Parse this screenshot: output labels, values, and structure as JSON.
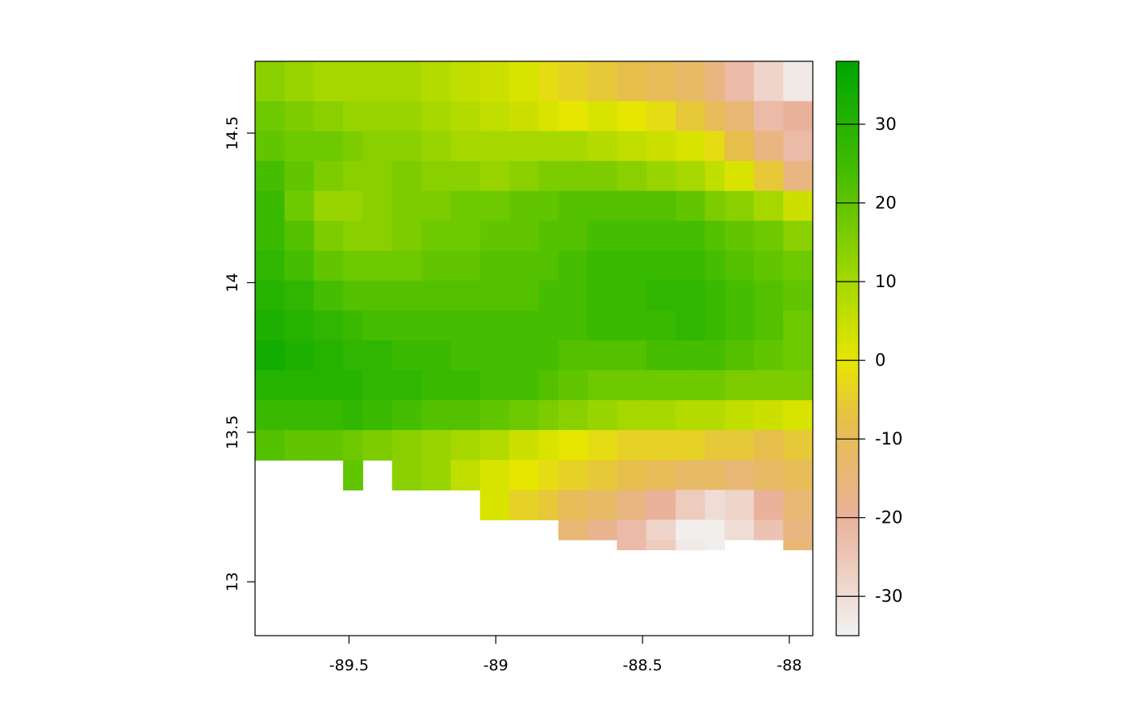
{
  "chart_data": {
    "type": "heatmap",
    "title": "",
    "xlabel": "",
    "ylabel": "",
    "xlim": [
      -89.82,
      -87.92
    ],
    "ylim": [
      12.82,
      14.74
    ],
    "x_ticks": [
      {
        "value": -89.5,
        "label": "-89.5"
      },
      {
        "value": -89.0,
        "label": "-89"
      },
      {
        "value": -88.5,
        "label": "-88.5"
      },
      {
        "value": -88.0,
        "label": "-88"
      }
    ],
    "y_ticks": [
      {
        "value": 13.0,
        "label": "13"
      },
      {
        "value": 13.5,
        "label": "13.5"
      },
      {
        "value": 14.0,
        "label": "14"
      },
      {
        "value": 14.5,
        "label": "14.5"
      }
    ],
    "grid": false,
    "value_range": [
      -35,
      38
    ],
    "colorbar": {
      "placement": "right",
      "ticks": [
        {
          "value": 30,
          "label": "30"
        },
        {
          "value": 20,
          "label": "20"
        },
        {
          "value": 10,
          "label": "10"
        },
        {
          "value": 0,
          "label": "0"
        },
        {
          "value": -10,
          "label": "-10"
        },
        {
          "value": -20,
          "label": "-20"
        },
        {
          "value": -30,
          "label": "-30"
        }
      ],
      "colors": [
        "#f2f2f2",
        "#eab29b",
        "#e6be4c",
        "#e6e600",
        "#a6d800",
        "#3ebb00",
        "#00a600"
      ],
      "color_stops": [
        -35,
        -20,
        -8,
        0,
        10,
        25,
        38
      ]
    },
    "cell_size_deg": 0.0833,
    "data_extent_note": "",
    "cells": [
      {
        "row_lat": 14.7,
        "values_by_lon": [
          14,
          12,
          10,
          10,
          10,
          10,
          8,
          6,
          4,
          2,
          -2,
          -4,
          -6,
          -8,
          -10,
          -12,
          -16,
          -22,
          -28,
          -33
        ]
      },
      {
        "row_lat": 14.6,
        "values_by_lon": [
          18,
          16,
          14,
          12,
          12,
          12,
          10,
          8,
          6,
          4,
          2,
          0,
          2,
          0,
          -2,
          -6,
          -10,
          -14,
          -22,
          -20
        ]
      },
      {
        "row_lat": 14.5,
        "values_by_lon": [
          20,
          18,
          18,
          16,
          14,
          14,
          12,
          10,
          10,
          10,
          10,
          10,
          8,
          6,
          4,
          2,
          -2,
          -8,
          -16,
          -22
        ]
      },
      {
        "row_lat": 14.4,
        "values_by_lon": [
          24,
          20,
          16,
          14,
          14,
          16,
          14,
          14,
          12,
          14,
          16,
          16,
          16,
          14,
          12,
          10,
          6,
          2,
          -6,
          -16
        ]
      },
      {
        "row_lat": 14.3,
        "values_by_lon": [
          26,
          18,
          12,
          12,
          14,
          16,
          16,
          18,
          18,
          20,
          20,
          22,
          22,
          22,
          22,
          20,
          16,
          14,
          10,
          4
        ]
      },
      {
        "row_lat": 14.2,
        "values_by_lon": [
          26,
          22,
          16,
          14,
          14,
          16,
          18,
          18,
          20,
          20,
          22,
          22,
          24,
          24,
          24,
          24,
          22,
          20,
          18,
          14
        ]
      },
      {
        "row_lat": 14.1,
        "values_by_lon": [
          28,
          24,
          20,
          18,
          18,
          18,
          20,
          20,
          22,
          22,
          22,
          24,
          26,
          26,
          26,
          26,
          24,
          22,
          20,
          18
        ]
      },
      {
        "row_lat": 14.0,
        "values_by_lon": [
          30,
          28,
          24,
          22,
          22,
          22,
          22,
          22,
          22,
          22,
          24,
          24,
          26,
          26,
          28,
          28,
          26,
          24,
          22,
          20
        ]
      },
      {
        "row_lat": 13.9,
        "values_by_lon": [
          32,
          30,
          28,
          26,
          24,
          24,
          24,
          24,
          24,
          24,
          24,
          24,
          26,
          26,
          26,
          28,
          26,
          24,
          22,
          18
        ]
      },
      {
        "row_lat": 13.8,
        "values_by_lon": [
          34,
          32,
          30,
          28,
          28,
          26,
          26,
          24,
          24,
          24,
          24,
          22,
          22,
          22,
          24,
          24,
          24,
          22,
          20,
          18
        ]
      },
      {
        "row_lat": 13.7,
        "values_by_lon": [
          30,
          30,
          30,
          30,
          28,
          28,
          26,
          26,
          24,
          24,
          22,
          20,
          18,
          18,
          18,
          18,
          18,
          16,
          16,
          16
        ]
      },
      {
        "row_lat": 13.6,
        "values_by_lon": [
          26,
          26,
          26,
          28,
          26,
          24,
          22,
          22,
          20,
          18,
          16,
          14,
          12,
          10,
          10,
          8,
          8,
          6,
          4,
          2
        ]
      },
      {
        "row_lat": 13.5,
        "values_by_lon": [
          22,
          20,
          20,
          18,
          16,
          14,
          12,
          10,
          8,
          4,
          2,
          0,
          -2,
          -4,
          -4,
          -4,
          -6,
          -6,
          -8,
          -6
        ]
      },
      {
        "row_lat": 13.4,
        "values_by_lon": [
          null,
          null,
          null,
          20,
          null,
          14,
          12,
          6,
          2,
          0,
          -2,
          -4,
          -6,
          -8,
          -10,
          -12,
          -12,
          -14,
          -12,
          -10
        ]
      },
      {
        "row_lat": 13.3,
        "values_by_lon": [
          null,
          null,
          null,
          null,
          null,
          null,
          null,
          null,
          2,
          -4,
          -6,
          -10,
          -12,
          -16,
          -20,
          -26,
          -30,
          -28,
          -20,
          -14
        ]
      },
      {
        "row_lat": 13.2,
        "values_by_lon": [
          null,
          null,
          null,
          null,
          null,
          null,
          null,
          null,
          null,
          null,
          null,
          -14,
          -18,
          -22,
          -28,
          -34,
          -34,
          -30,
          -24,
          -16
        ]
      },
      {
        "row_lat": 13.15,
        "values_by_lon": [
          null,
          null,
          null,
          null,
          null,
          null,
          null,
          null,
          null,
          null,
          null,
          null,
          null,
          -22,
          -26,
          -33,
          -34,
          null,
          null,
          -14
        ]
      }
    ]
  }
}
